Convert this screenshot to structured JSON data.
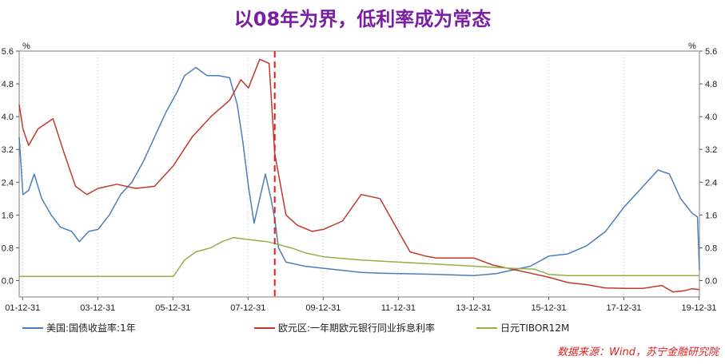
{
  "title": "以08年为界，低利率成为常态",
  "source": "数据来源：Wind，苏宁金融研究院",
  "chart_data": {
    "type": "line",
    "y_unit_left": "%",
    "y_unit_right": "%",
    "ylim": [
      -0.4,
      5.6
    ],
    "yticks": [
      -0.0,
      0.8,
      1.6,
      2.4,
      3.2,
      4.0,
      4.8,
      5.6
    ],
    "ytick_labels": [
      "0.0",
      "0.8",
      "1.6",
      "2.4",
      "3.2",
      "4.0",
      "4.8",
      "5.6"
    ],
    "xlim": [
      2001.9,
      2020.0
    ],
    "xticks": [
      2001.99,
      2003.99,
      2005.99,
      2007.99,
      2009.99,
      2011.99,
      2013.99,
      2015.99,
      2017.99,
      2019.99
    ],
    "xtick_labels": [
      "01-12-31",
      "03-12-31",
      "05-12-31",
      "07-12-31",
      "09-12-31",
      "11-12-31",
      "13-12-31",
      "15-12-31",
      "17-12-31",
      "19-12-31"
    ],
    "divider_x": 2008.7,
    "grid": "vertical-dotted",
    "legend_position": "bottom",
    "series": [
      {
        "name": "美国:国债收益率:1年",
        "color": "#4a7ebb",
        "x": [
          2001.9,
          2002.0,
          2002.15,
          2002.3,
          2002.5,
          2002.75,
          2003.0,
          2003.3,
          2003.5,
          2003.75,
          2004.0,
          2004.3,
          2004.6,
          2004.9,
          2005.2,
          2005.5,
          2005.8,
          2006.1,
          2006.3,
          2006.6,
          2006.9,
          2007.2,
          2007.5,
          2007.7,
          2007.85,
          2008.0,
          2008.15,
          2008.3,
          2008.45,
          2008.6,
          2008.7,
          2008.8,
          2009.0,
          2009.5,
          2010.0,
          2010.5,
          2011.0,
          2011.5,
          2012.0,
          2013.0,
          2014.0,
          2014.6,
          2015.0,
          2015.5,
          2016.0,
          2016.5,
          2017.0,
          2017.5,
          2018.0,
          2018.5,
          2018.9,
          2019.2,
          2019.5,
          2019.8,
          2019.95,
          2020.0
        ],
        "y": [
          3.5,
          2.1,
          2.2,
          2.6,
          2.0,
          1.6,
          1.3,
          1.2,
          0.95,
          1.2,
          1.25,
          1.6,
          2.1,
          2.4,
          2.9,
          3.5,
          4.1,
          4.6,
          5.0,
          5.2,
          5.0,
          5.0,
          4.95,
          4.3,
          3.4,
          2.3,
          1.4,
          2.0,
          2.6,
          2.0,
          1.5,
          0.8,
          0.45,
          0.35,
          0.3,
          0.25,
          0.2,
          0.18,
          0.17,
          0.15,
          0.12,
          0.17,
          0.25,
          0.35,
          0.6,
          0.65,
          0.85,
          1.2,
          1.8,
          2.3,
          2.7,
          2.6,
          2.0,
          1.65,
          1.55,
          0.25
        ]
      },
      {
        "name": "欧元区:一年期欧元银行同业拆息利率",
        "color": "#c0392b",
        "x": [
          2001.9,
          2002.0,
          2002.15,
          2002.4,
          2002.8,
          2003.1,
          2003.4,
          2003.7,
          2004.0,
          2004.5,
          2005.0,
          2005.5,
          2006.0,
          2006.5,
          2007.0,
          2007.5,
          2007.8,
          2008.0,
          2008.3,
          2008.55,
          2008.7,
          2008.8,
          2009.0,
          2009.3,
          2009.7,
          2010.0,
          2010.5,
          2011.0,
          2011.5,
          2011.9,
          2012.3,
          2012.7,
          2013.0,
          2013.5,
          2014.0,
          2014.5,
          2015.0,
          2015.5,
          2016.0,
          2016.5,
          2017.0,
          2017.5,
          2018.0,
          2018.5,
          2019.0,
          2019.3,
          2019.6,
          2019.8,
          2020.0
        ],
        "y": [
          4.3,
          3.7,
          3.3,
          3.7,
          3.95,
          3.1,
          2.3,
          2.1,
          2.25,
          2.35,
          2.25,
          2.3,
          2.8,
          3.5,
          4.0,
          4.4,
          4.9,
          4.7,
          5.4,
          5.3,
          3.1,
          2.6,
          1.6,
          1.35,
          1.2,
          1.25,
          1.45,
          2.1,
          2.0,
          1.35,
          0.7,
          0.6,
          0.55,
          0.55,
          0.55,
          0.38,
          0.28,
          0.18,
          0.08,
          -0.05,
          -0.1,
          -0.18,
          -0.19,
          -0.19,
          -0.12,
          -0.28,
          -0.25,
          -0.2,
          -0.22
        ]
      },
      {
        "name": "日元TIBOR12M",
        "color": "#92b045",
        "x": [
          2001.9,
          2003.0,
          2004.0,
          2005.0,
          2006.0,
          2006.3,
          2006.6,
          2007.0,
          2007.3,
          2007.6,
          2008.0,
          2008.5,
          2008.8,
          2009.2,
          2009.5,
          2010.0,
          2011.0,
          2012.0,
          2013.0,
          2014.0,
          2015.0,
          2015.6,
          2016.0,
          2016.5,
          2017.0,
          2018.0,
          2019.0,
          2020.0
        ],
        "y": [
          0.1,
          0.1,
          0.1,
          0.1,
          0.1,
          0.5,
          0.7,
          0.8,
          0.95,
          1.05,
          1.0,
          0.95,
          0.88,
          0.78,
          0.68,
          0.58,
          0.5,
          0.45,
          0.4,
          0.35,
          0.3,
          0.28,
          0.15,
          0.12,
          0.12,
          0.12,
          0.12,
          0.12
        ]
      }
    ]
  }
}
